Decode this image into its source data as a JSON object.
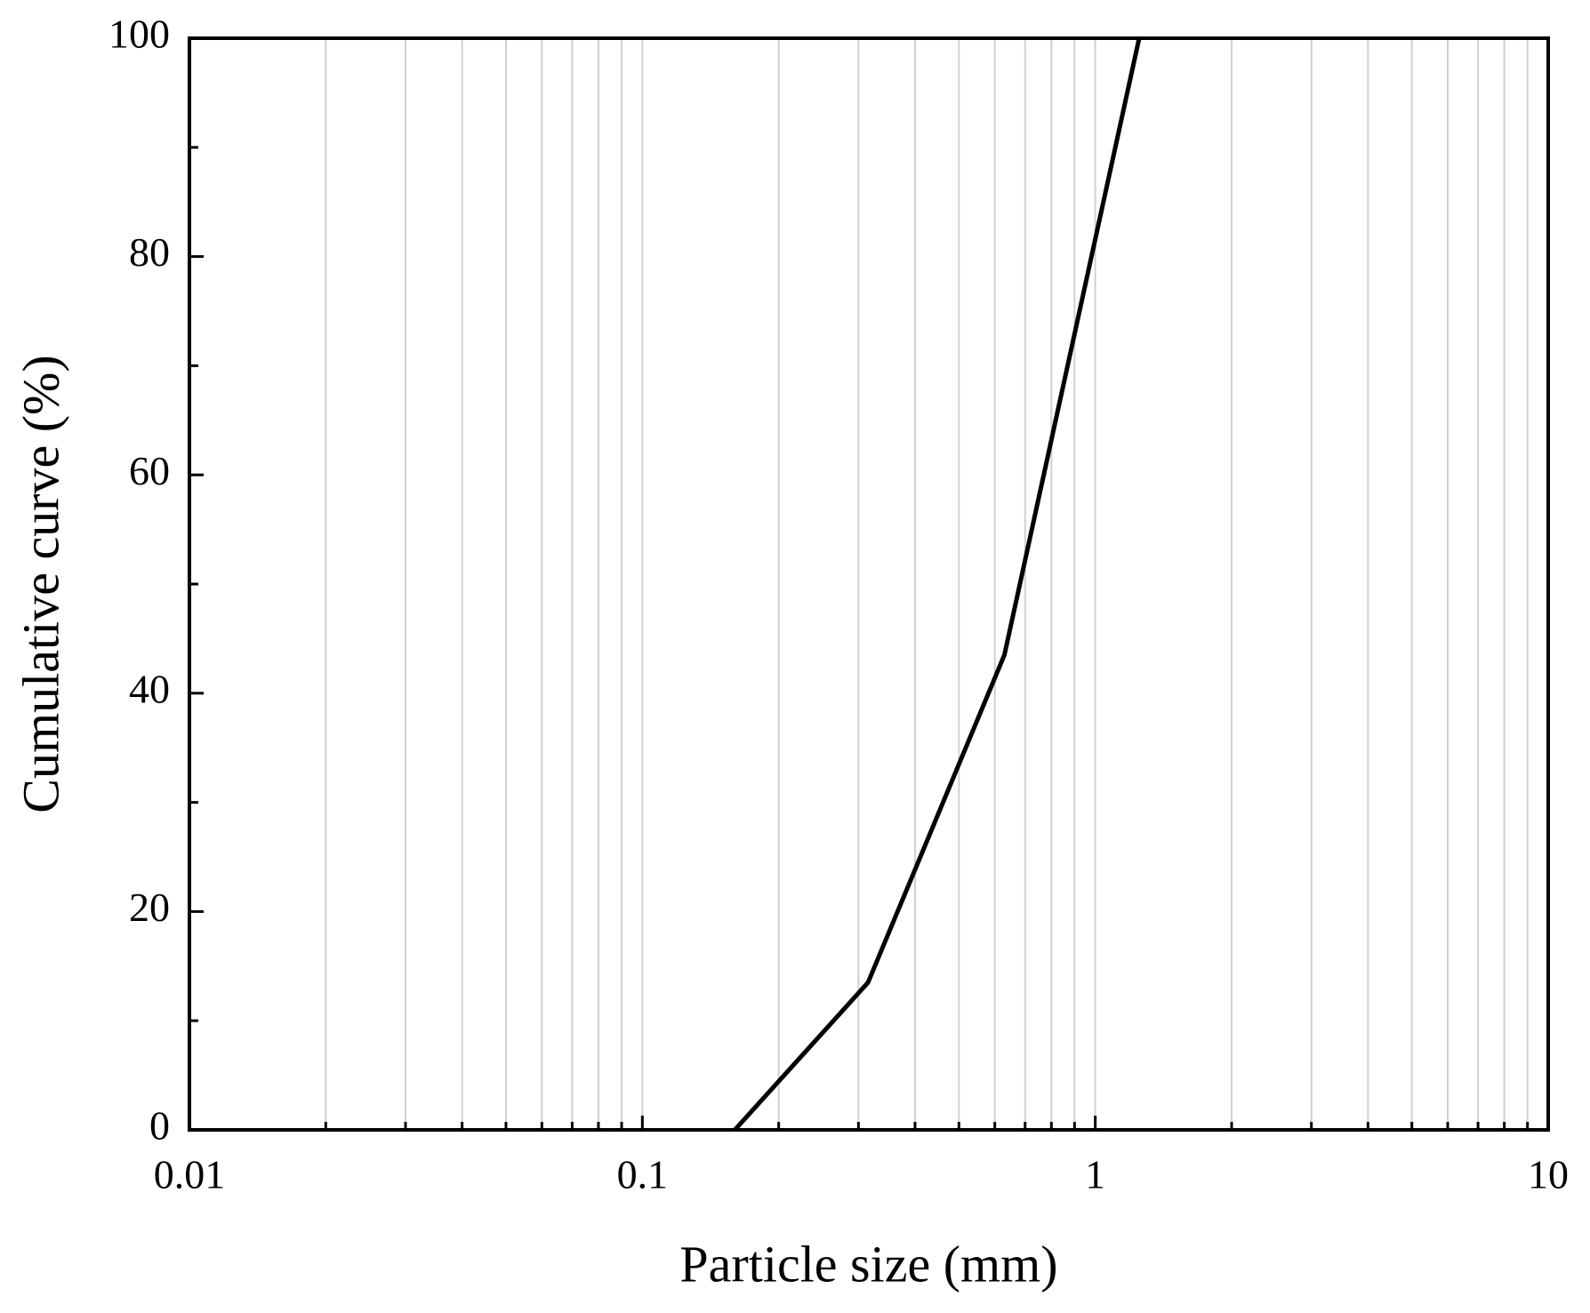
{
  "chart_data": {
    "type": "line",
    "x_label": "Particle size (mm)",
    "y_label": "Cumulative curve (%)",
    "x_scale": "log",
    "x": [
      0.16,
      0.315,
      0.63,
      1.25
    ],
    "series": [
      {
        "color": "#000000",
        "values": [
          0,
          13.5,
          43.5,
          100
        ]
      }
    ],
    "xlim": [
      0.01,
      10
    ],
    "ylim": [
      0,
      100
    ],
    "xticks": [
      0.01,
      0.1,
      1,
      10
    ],
    "xminorticks": [
      0.02,
      0.03,
      0.04,
      0.05,
      0.06,
      0.07,
      0.08,
      0.09,
      0.2,
      0.3,
      0.4,
      0.5,
      0.6,
      0.7,
      0.8,
      0.9,
      2,
      3,
      4,
      5,
      6,
      7,
      8,
      9
    ],
    "yticks": [
      0,
      20,
      40,
      60,
      80,
      100
    ],
    "yminorticks": [
      10,
      30,
      50,
      70,
      90
    ],
    "grid": true,
    "grid_color": "#d0d0d0"
  }
}
